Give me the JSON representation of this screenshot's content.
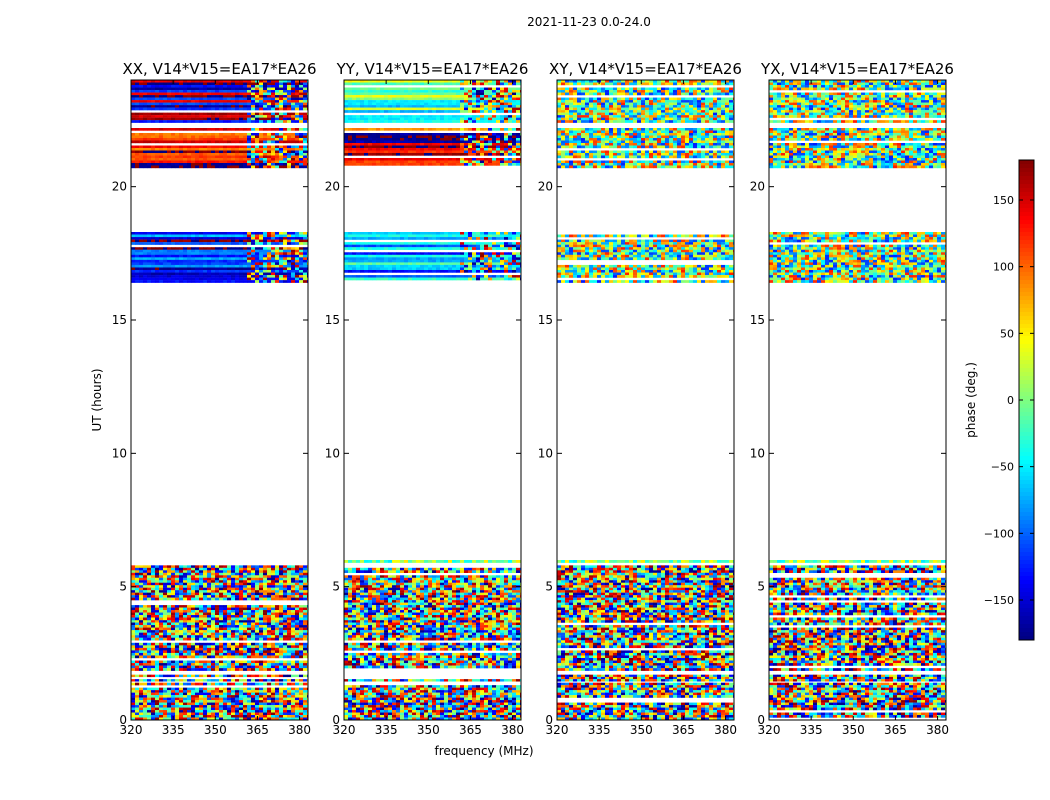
{
  "chart_data": {
    "type": "heatmap",
    "suptitle": "2021-11-23 0.0-24.0",
    "xlabel": "frequency (MHz)",
    "ylabel": "UT (hours)",
    "xlim": [
      320,
      383
    ],
    "ylim": [
      0,
      24
    ],
    "xticks": [
      "320",
      "335",
      "350",
      "365",
      "380"
    ],
    "yticks": [
      "0",
      "5",
      "10",
      "15",
      "20"
    ],
    "colorbar": {
      "label": "phase (deg.)",
      "range": [
        -180,
        180
      ],
      "ticks": [
        "150",
        "100",
        "50",
        "0",
        "−50",
        "−100",
        "−150"
      ],
      "colormap": "jet"
    },
    "panels": [
      {
        "title": "XX, V14*V15=EA17*EA26"
      },
      {
        "title": "YY, V14*V15=EA17*EA26"
      },
      {
        "title": "XY, V14*V15=EA17*EA26"
      },
      {
        "title": "YX, V14*V15=EA17*EA26"
      }
    ],
    "data_blocks_ut_hours": [
      {
        "start": 0.0,
        "end": 1.4,
        "kind": "noise"
      },
      {
        "start": 1.45,
        "end": 1.7,
        "kind": "mixed"
      },
      {
        "start": 1.85,
        "end": 3.75,
        "kind": "noise"
      },
      {
        "start": 3.75,
        "end": 5.8,
        "kind": "noise"
      },
      {
        "start": 5.9,
        "end": 6.0,
        "kind": "line"
      },
      {
        "start": 16.4,
        "end": 18.3,
        "kind": "coherent"
      },
      {
        "start": 20.7,
        "end": 22.2,
        "kind": "coherent"
      },
      {
        "start": 22.4,
        "end": 24.0,
        "kind": "coherent"
      }
    ]
  }
}
